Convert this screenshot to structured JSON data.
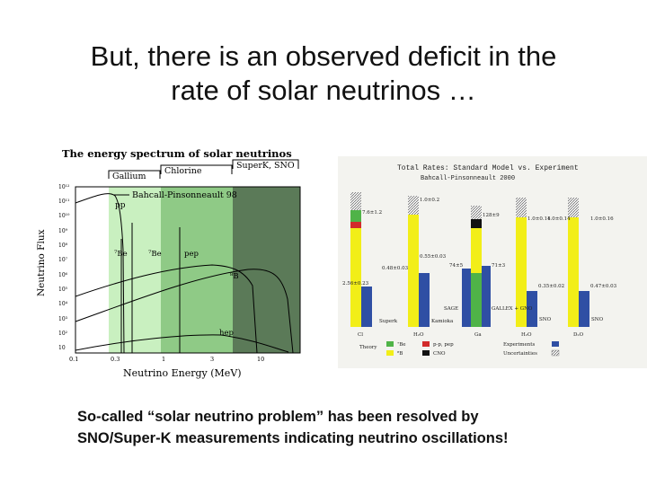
{
  "slide": {
    "title_line1": "But, there is an observed deficit in the",
    "title_line2": "rate of solar neutrinos …",
    "caption_line1": "So-called “solar neutrino problem” has been resolved by",
    "caption_line2": "SNO/Super-K measurements indicating neutrino oscillations!"
  },
  "colors": {
    "gallium_band": "#c9f0c0",
    "chlorine_band": "#8fca86",
    "superk_band": "#5b7a58",
    "theory_pp_green": "#4fb348",
    "theory_8b_yellow": "#f2ee18",
    "theory_be7": "#d22b2b",
    "theory_cno": "#111111",
    "experiment_blue": "#2f4fa4"
  },
  "spectrum": {
    "title": "The energy spectrum of solar neutrinos",
    "detectors": [
      "Gallium",
      "Chlorine",
      "SuperK, SNO"
    ],
    "model_label": "Bahcall-Pinsonneault 98",
    "y_ticks": [
      "10¹²",
      "10¹¹",
      "10¹⁰",
      "10⁹",
      "10⁸",
      "10⁷",
      "10⁶",
      "10⁵",
      "10⁴",
      "10³",
      "10²",
      "10"
    ],
    "x_ticks": [
      "0.1",
      "0.3",
      "1",
      "3",
      "10"
    ],
    "x_label": "Neutrino Energy (MeV)",
    "y_label": "Neutrino Flux",
    "components": [
      "pp",
      "⁷Be",
      "⁷Be",
      "pep",
      "⁸B",
      "hep"
    ]
  },
  "rates": {
    "title": "Total Rates: Standard Model vs. Experiment",
    "subtitle": "Bahcall-Pinsonneault 2000",
    "theory_values": [
      "7.6±1.2",
      "128±9",
      "1.0±0.2",
      "1.0±0.14",
      "1.0±0.14",
      "1.0±0.16"
    ],
    "experiment_values": [
      "2.56±0.23",
      "0.48±0.03",
      "0.55±0.03",
      "74±5",
      "71±3",
      "0.35±0.02",
      "0.47±0.03"
    ],
    "experiments": [
      "Superk",
      "Kamioka",
      "SAGE",
      "GALLEX\n+ GNO",
      "SNO",
      "SNO"
    ],
    "targets": [
      "Cl",
      "H₂O",
      "Ga",
      "H₂O",
      "D₂O"
    ],
    "legend": {
      "theory": "Theory",
      "be7": "⁷Be",
      "b8": "⁸B",
      "pp_pep": "p-p, pep",
      "cno": "CNO",
      "experiments": "Experiments",
      "uncertainties": "Uncertainties"
    }
  }
}
